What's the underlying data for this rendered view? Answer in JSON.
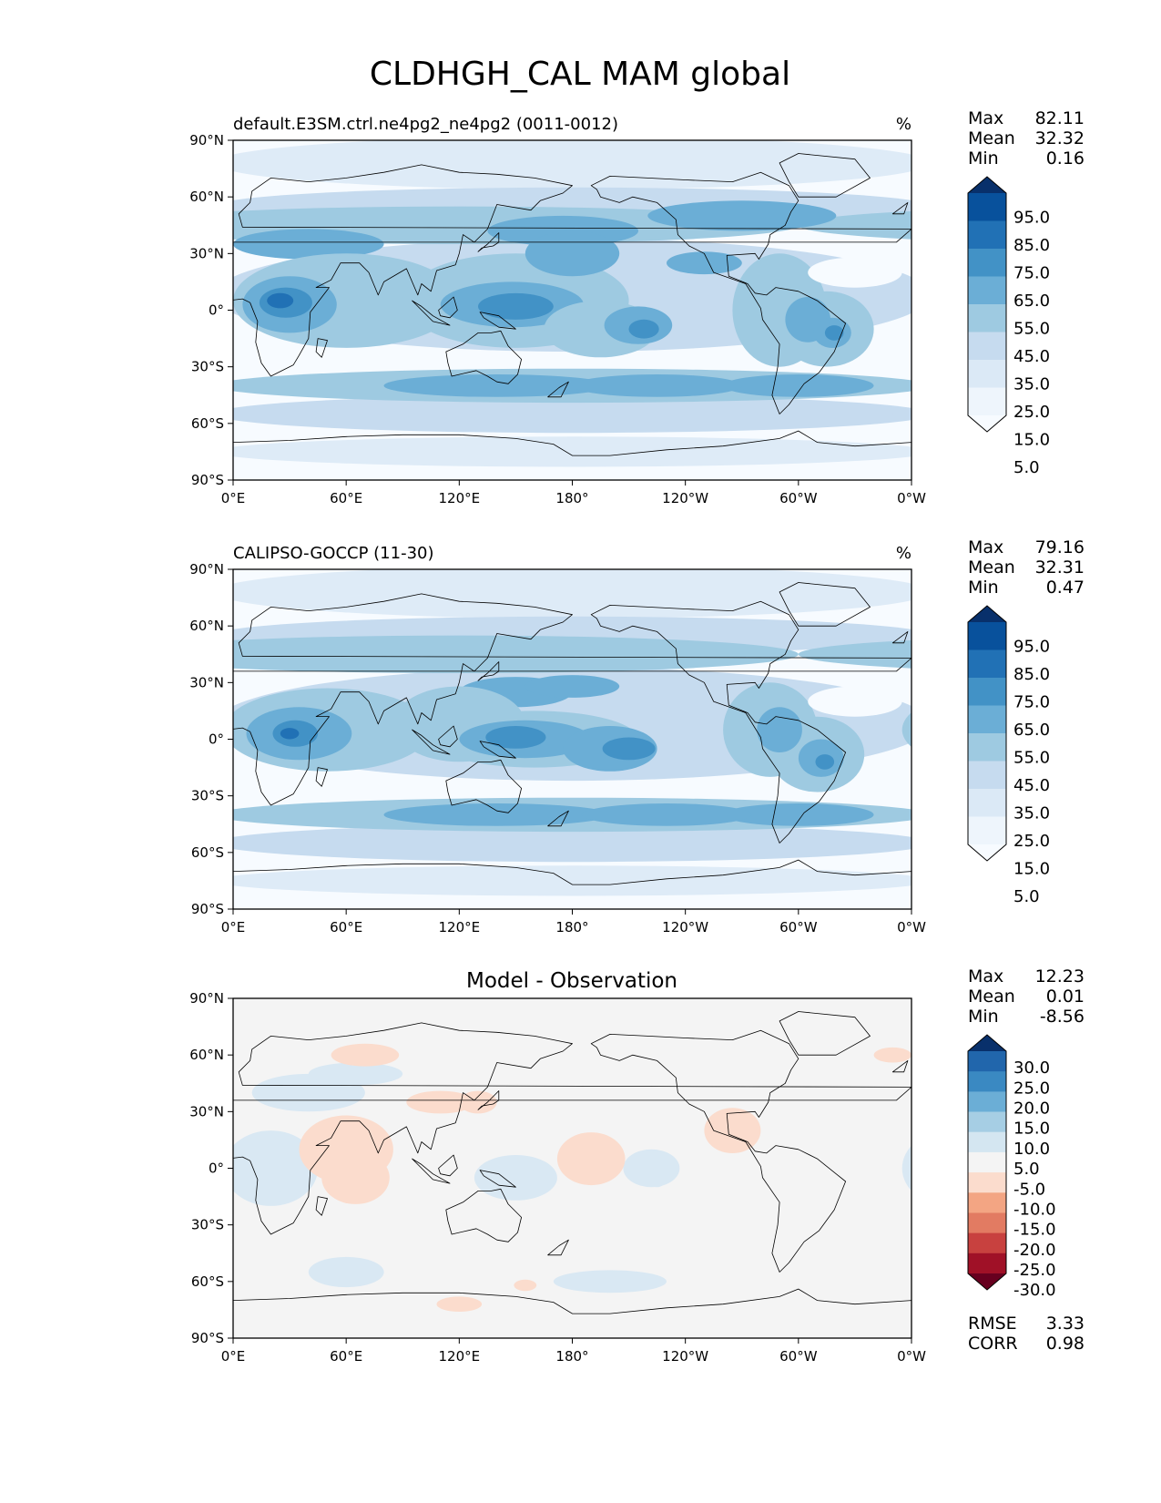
{
  "title": "CLDHGH_CAL MAM global",
  "chart_data": [
    {
      "type": "heatmap",
      "panel_title": "default.E3SM.ctrl.ne4pg2_ne4pg2 (0011-0012)",
      "units": "%",
      "x_ticks": [
        "0°E",
        "60°E",
        "120°E",
        "180°",
        "120°W",
        "60°W",
        "0°W"
      ],
      "y_ticks": [
        "90°N",
        "60°N",
        "30°N",
        "0°",
        "30°S",
        "60°S",
        "90°S"
      ],
      "xlim": [
        0,
        360
      ],
      "ylim": [
        -90,
        90
      ],
      "stats": [
        {
          "label": "Max",
          "value": "82.11"
        },
        {
          "label": "Mean",
          "value": "32.32"
        },
        {
          "label": "Min",
          "value": "0.16"
        }
      ],
      "colorbar": {
        "labels": [
          "95.0",
          "85.0",
          "75.0",
          "65.0",
          "55.0",
          "45.0",
          "35.0",
          "25.0",
          "15.0",
          "5.0"
        ],
        "colors": [
          "#08306b",
          "#08519c",
          "#2171b5",
          "#4292c6",
          "#6baed6",
          "#9ecae1",
          "#c6dbef",
          "#dbe9f6",
          "#eef5fc",
          "#f7fbff"
        ],
        "extend": "both"
      },
      "contour_colors": [
        "#f7fbff",
        "#deebf7",
        "#c6dbef",
        "#9ecae1",
        "#6baed6",
        "#4292c6",
        "#2171b5"
      ]
    },
    {
      "type": "heatmap",
      "panel_title": "CALIPSO-GOCCP (11-30)",
      "units": "%",
      "x_ticks": [
        "0°E",
        "60°E",
        "120°E",
        "180°",
        "120°W",
        "60°W",
        "0°W"
      ],
      "y_ticks": [
        "90°N",
        "60°N",
        "30°N",
        "0°",
        "30°S",
        "60°S",
        "90°S"
      ],
      "xlim": [
        0,
        360
      ],
      "ylim": [
        -90,
        90
      ],
      "stats": [
        {
          "label": "Max",
          "value": "79.16"
        },
        {
          "label": "Mean",
          "value": "32.31"
        },
        {
          "label": "Min",
          "value": "0.47"
        }
      ],
      "colorbar": {
        "labels": [
          "95.0",
          "85.0",
          "75.0",
          "65.0",
          "55.0",
          "45.0",
          "35.0",
          "25.0",
          "15.0",
          "5.0"
        ],
        "colors": [
          "#08306b",
          "#08519c",
          "#2171b5",
          "#4292c6",
          "#6baed6",
          "#9ecae1",
          "#c6dbef",
          "#dbe9f6",
          "#eef5fc",
          "#f7fbff"
        ],
        "extend": "both"
      },
      "contour_colors": [
        "#f7fbff",
        "#deebf7",
        "#c6dbef",
        "#9ecae1",
        "#6baed6",
        "#4292c6",
        "#2171b5"
      ]
    },
    {
      "type": "heatmap",
      "panel_title": "Model - Observation",
      "units": "",
      "x_ticks": [
        "0°E",
        "60°E",
        "120°E",
        "180°",
        "120°W",
        "60°W",
        "0°W"
      ],
      "y_ticks": [
        "90°N",
        "60°N",
        "30°N",
        "0°",
        "30°S",
        "60°S",
        "90°S"
      ],
      "xlim": [
        0,
        360
      ],
      "ylim": [
        -90,
        90
      ],
      "stats": [
        {
          "label": "Max",
          "value": "12.23"
        },
        {
          "label": "Mean",
          "value": "0.01"
        },
        {
          "label": "Min",
          "value": "-8.56"
        }
      ],
      "extra_stats": [
        {
          "label": "RMSE",
          "value": "3.33"
        },
        {
          "label": "CORR",
          "value": "0.98"
        }
      ],
      "colorbar": {
        "labels": [
          "30.0",
          "25.0",
          "20.0",
          "15.0",
          "10.0",
          "5.0",
          "-5.0",
          "-10.0",
          "-15.0",
          "-20.0",
          "-25.0",
          "-30.0"
        ],
        "colors": [
          "#08306b",
          "#2166ac",
          "#3a89c2",
          "#6baed6",
          "#a6cee4",
          "#d4e6f1",
          "#f4f4f4",
          "#fbdccd",
          "#f3a583",
          "#e27b62",
          "#c8413f",
          "#a01127",
          "#67001f"
        ],
        "extend": "both"
      },
      "contour_colors": [
        "#f4f4f4",
        "#d9e8f3",
        "#fbdccd"
      ]
    }
  ]
}
